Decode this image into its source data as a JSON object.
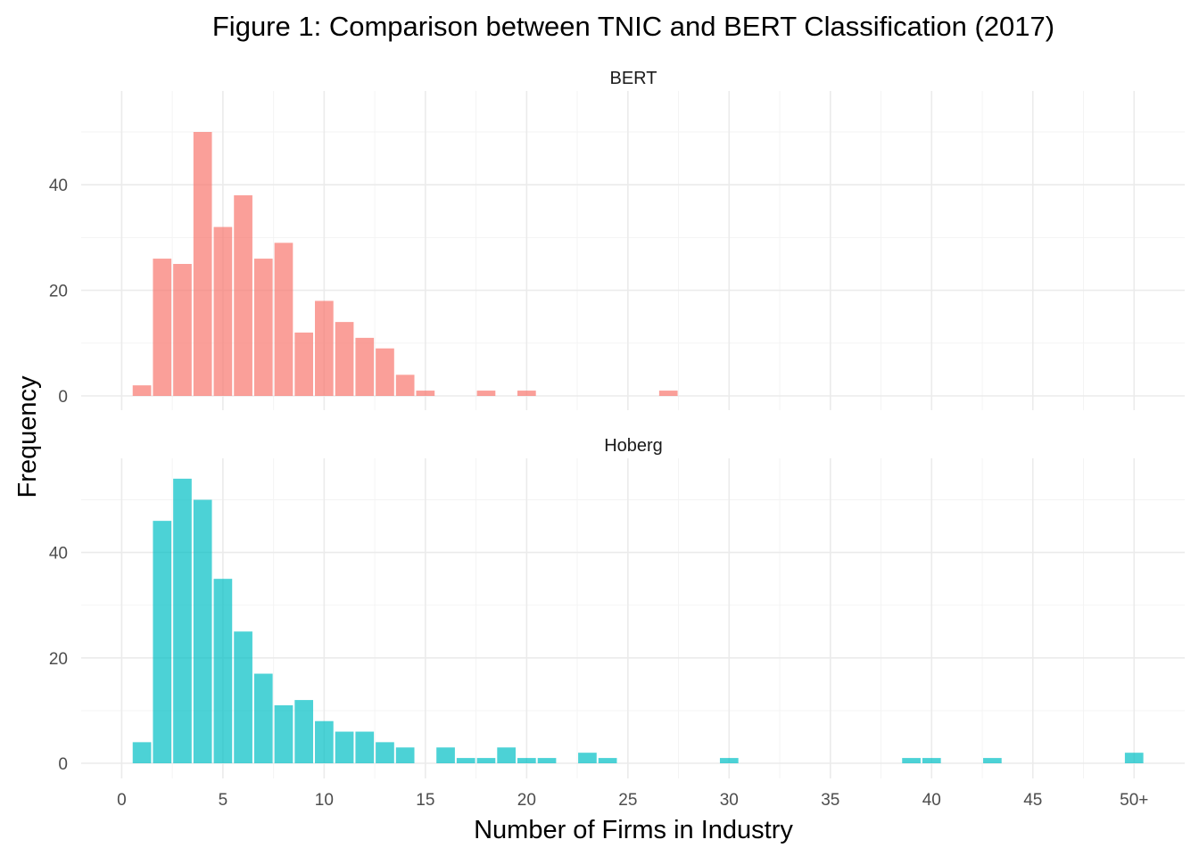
{
  "chart_data": {
    "type": "bar",
    "title": "Figure 1: Comparison between TNIC and BERT Classification (2017)",
    "xlabel": "Number of Firms in Industry",
    "ylabel": "Frequency",
    "xlim": [
      -2,
      52.5
    ],
    "x_ticks": [
      0,
      5,
      10,
      15,
      20,
      25,
      30,
      35,
      40,
      45,
      50
    ],
    "x_tick_labels": [
      "0",
      "5",
      "10",
      "15",
      "20",
      "25",
      "30",
      "35",
      "40",
      "45",
      "50+"
    ],
    "y_ticks": [
      0,
      20,
      40
    ],
    "grid": true,
    "legend": "none",
    "facets": [
      {
        "name": "BERT",
        "color": "#F8766D",
        "ylim": [
          0,
          54
        ],
        "x": [
          1,
          2,
          3,
          4,
          5,
          6,
          7,
          8,
          9,
          10,
          11,
          12,
          13,
          14,
          15,
          18,
          20,
          27
        ],
        "values": [
          2,
          26,
          25,
          50,
          32,
          38,
          26,
          29,
          12,
          18,
          14,
          11,
          9,
          4,
          1,
          1,
          1,
          1
        ]
      },
      {
        "name": "Hoberg",
        "color": "#00BFC4",
        "ylim": [
          0,
          57
        ],
        "x": [
          1,
          2,
          3,
          4,
          5,
          6,
          7,
          8,
          9,
          10,
          11,
          12,
          13,
          14,
          16,
          17,
          18,
          19,
          20,
          21,
          23,
          24,
          30,
          39,
          40,
          43,
          50
        ],
        "values": [
          4,
          46,
          54,
          50,
          35,
          25,
          17,
          11,
          12,
          8,
          6,
          6,
          4,
          3,
          3,
          1,
          1,
          3,
          1,
          1,
          2,
          1,
          1,
          1,
          1,
          1,
          2
        ]
      }
    ]
  }
}
